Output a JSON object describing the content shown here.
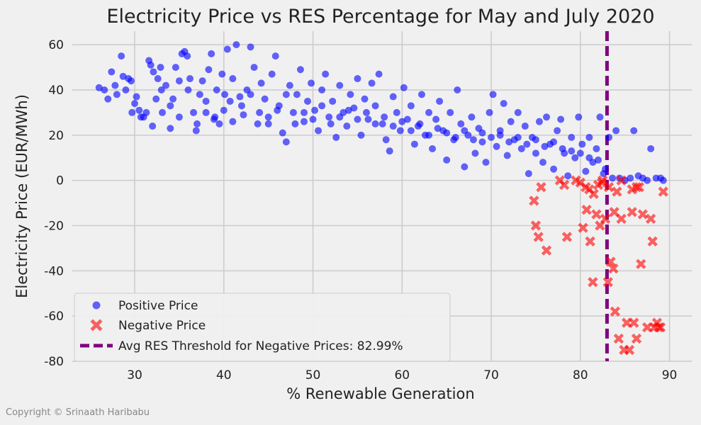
{
  "chart_data": {
    "type": "scatter",
    "title": "Electricity Price vs RES Percentage for May and July 2020",
    "xlabel": "% Renewable Generation",
    "ylabel": "Electricity Price (EUR/MWh)",
    "xlim": [
      23,
      92.5
    ],
    "ylim": [
      -80,
      66
    ],
    "xticks": [
      30,
      40,
      50,
      60,
      70,
      80,
      90
    ],
    "yticks": [
      -80,
      -60,
      -40,
      -20,
      0,
      20,
      40,
      60
    ],
    "grid": true,
    "legend_position": "bottom-left",
    "threshold": {
      "x": 82.99,
      "label": "Avg RES Threshold for Negative Prices: 82.99%",
      "color": "#800080"
    },
    "series": [
      {
        "name": "Positive Price",
        "marker": "circle",
        "color": "#0000ff",
        "points_note_ignored": "",
        "points": [
          [
            26,
            41
          ],
          [
            26.6,
            40
          ],
          [
            27,
            36
          ],
          [
            27.4,
            48
          ],
          [
            27.8,
            42
          ],
          [
            28,
            38
          ],
          [
            28.5,
            55
          ],
          [
            28.7,
            46
          ],
          [
            29,
            40
          ],
          [
            29.3,
            45
          ],
          [
            29.6,
            44
          ],
          [
            29.7,
            30
          ],
          [
            30.2,
            37
          ],
          [
            30.5,
            31
          ],
          [
            30.7,
            28
          ],
          [
            31.3,
            30
          ],
          [
            31.6,
            53
          ],
          [
            31.8,
            51
          ],
          [
            32.1,
            48
          ],
          [
            32.4,
            36
          ],
          [
            32.6,
            45
          ],
          [
            32.9,
            50
          ],
          [
            33.1,
            30
          ],
          [
            33.5,
            42
          ],
          [
            34,
            23
          ],
          [
            34.3,
            36
          ],
          [
            34.6,
            50
          ],
          [
            35,
            44
          ],
          [
            35.3,
            56
          ],
          [
            35.6,
            57
          ],
          [
            35.9,
            55
          ],
          [
            36.2,
            45
          ],
          [
            36.6,
            30
          ],
          [
            36.9,
            22
          ],
          [
            37.3,
            38
          ],
          [
            37.6,
            44
          ],
          [
            38,
            35
          ],
          [
            38.3,
            49
          ],
          [
            38.6,
            56
          ],
          [
            38.9,
            27
          ],
          [
            39.2,
            40
          ],
          [
            39.5,
            25
          ],
          [
            39.8,
            47
          ],
          [
            40.1,
            38
          ],
          [
            40.4,
            58
          ],
          [
            40.7,
            35
          ],
          [
            41,
            45
          ],
          [
            41.4,
            60
          ],
          [
            41.8,
            37
          ],
          [
            42.2,
            29
          ],
          [
            42.6,
            40
          ],
          [
            43,
            59
          ],
          [
            43.4,
            50
          ],
          [
            43.8,
            25
          ],
          [
            44.2,
            43
          ],
          [
            44.6,
            36
          ],
          [
            45,
            28
          ],
          [
            45.4,
            47
          ],
          [
            45.8,
            55
          ],
          [
            46.2,
            33
          ],
          [
            46.6,
            21
          ],
          [
            47,
            17
          ],
          [
            47.4,
            42
          ],
          [
            47.8,
            30
          ],
          [
            48.2,
            38
          ],
          [
            48.6,
            49
          ],
          [
            49,
            26
          ],
          [
            49.4,
            35
          ],
          [
            49.8,
            43
          ],
          [
            50.2,
            31
          ],
          [
            50.6,
            22
          ],
          [
            51,
            40
          ],
          [
            51.4,
            47
          ],
          [
            51.8,
            28
          ],
          [
            52.2,
            35
          ],
          [
            52.6,
            19
          ],
          [
            53,
            42
          ],
          [
            53.4,
            30
          ],
          [
            53.8,
            24
          ],
          [
            54.2,
            38
          ],
          [
            54.6,
            32
          ],
          [
            55,
            45
          ],
          [
            55.4,
            20
          ],
          [
            55.8,
            36
          ],
          [
            56.2,
            27
          ],
          [
            56.6,
            43
          ],
          [
            57,
            33
          ],
          [
            57.4,
            47
          ],
          [
            57.8,
            25
          ],
          [
            58.2,
            18
          ],
          [
            58.6,
            13
          ],
          [
            59,
            37
          ],
          [
            59.4,
            30
          ],
          [
            59.8,
            22
          ],
          [
            60.2,
            41
          ],
          [
            60.6,
            27
          ],
          [
            61,
            33
          ],
          [
            61.4,
            16
          ],
          [
            61.8,
            24
          ],
          [
            62.2,
            38
          ],
          [
            62.6,
            20
          ],
          [
            63,
            30
          ],
          [
            63.4,
            14
          ],
          [
            63.8,
            27
          ],
          [
            64.2,
            35
          ],
          [
            64.6,
            22
          ],
          [
            65,
            9
          ],
          [
            65.4,
            30
          ],
          [
            65.8,
            18
          ],
          [
            66.2,
            40
          ],
          [
            66.6,
            25
          ],
          [
            67,
            6
          ],
          [
            67.4,
            20
          ],
          [
            67.8,
            28
          ],
          [
            68.2,
            12
          ],
          [
            68.6,
            23
          ],
          [
            69,
            17
          ],
          [
            69.4,
            8
          ],
          [
            69.8,
            30
          ],
          [
            70.2,
            38
          ],
          [
            70.6,
            15
          ],
          [
            71,
            22
          ],
          [
            71.4,
            34
          ],
          [
            71.8,
            11
          ],
          [
            72.2,
            26
          ],
          [
            72.6,
            18
          ],
          [
            73,
            30
          ],
          [
            73.4,
            14
          ],
          [
            73.8,
            24
          ],
          [
            74.2,
            3
          ],
          [
            74.6,
            19
          ],
          [
            75,
            12
          ],
          [
            75.4,
            26
          ],
          [
            75.8,
            8
          ],
          [
            76.2,
            28
          ],
          [
            76.6,
            16
          ],
          [
            77,
            5
          ],
          [
            77.4,
            22
          ],
          [
            77.8,
            27
          ],
          [
            78.2,
            12
          ],
          [
            78.6,
            2
          ],
          [
            79,
            19
          ],
          [
            79.4,
            10
          ],
          [
            79.8,
            28
          ],
          [
            80.2,
            16
          ],
          [
            80.6,
            4
          ],
          [
            81,
            19
          ],
          [
            81.4,
            8
          ],
          [
            81.8,
            14
          ],
          [
            82.2,
            28
          ],
          [
            82.6,
            3
          ],
          [
            83.2,
            19
          ],
          [
            83.6,
            1
          ],
          [
            84,
            22
          ],
          [
            84.4,
            1
          ],
          [
            85,
            0
          ],
          [
            85.6,
            1
          ],
          [
            86,
            22
          ],
          [
            86.5,
            2
          ],
          [
            87,
            1
          ],
          [
            87.5,
            0
          ],
          [
            87.9,
            14
          ],
          [
            88.5,
            1
          ],
          [
            89,
            1
          ],
          [
            89.3,
            0
          ],
          [
            30,
            34
          ],
          [
            31,
            28
          ],
          [
            32,
            24
          ],
          [
            33,
            40
          ],
          [
            34,
            33
          ],
          [
            35,
            28
          ],
          [
            36,
            40
          ],
          [
            37,
            25
          ],
          [
            38,
            30
          ],
          [
            39,
            28
          ],
          [
            40,
            31
          ],
          [
            41,
            26
          ],
          [
            42,
            33
          ],
          [
            43,
            38
          ],
          [
            44,
            30
          ],
          [
            45,
            25
          ],
          [
            46,
            31
          ],
          [
            47,
            38
          ],
          [
            48,
            25
          ],
          [
            49,
            30
          ],
          [
            50,
            27
          ],
          [
            51,
            33
          ],
          [
            52,
            25
          ],
          [
            53,
            28
          ],
          [
            54,
            31
          ],
          [
            55,
            27
          ],
          [
            56,
            30
          ],
          [
            57,
            25
          ],
          [
            58,
            28
          ],
          [
            59,
            24
          ],
          [
            60,
            26
          ],
          [
            61,
            22
          ],
          [
            62,
            25
          ],
          [
            63,
            20
          ],
          [
            64,
            23
          ],
          [
            65,
            21
          ],
          [
            66,
            19
          ],
          [
            67,
            22
          ],
          [
            68,
            18
          ],
          [
            69,
            21
          ],
          [
            70,
            19
          ],
          [
            71,
            20
          ],
          [
            72,
            17
          ],
          [
            73,
            19
          ],
          [
            74,
            16
          ],
          [
            75,
            18
          ],
          [
            76,
            15
          ],
          [
            77,
            17
          ],
          [
            78,
            14
          ],
          [
            79,
            13
          ],
          [
            80,
            12
          ],
          [
            81,
            10
          ],
          [
            82,
            9
          ],
          [
            82.8,
            5
          ]
        ]
      },
      {
        "name": "Negative Price",
        "marker": "x",
        "color": "#ff0000",
        "points": [
          [
            74.8,
            -9
          ],
          [
            75,
            -20
          ],
          [
            75.3,
            -25
          ],
          [
            75.6,
            -3
          ],
          [
            76.2,
            -31
          ],
          [
            77.7,
            0
          ],
          [
            78.2,
            -2
          ],
          [
            78.5,
            -25
          ],
          [
            79.5,
            0
          ],
          [
            80,
            -1
          ],
          [
            80.3,
            -21
          ],
          [
            80.7,
            -13
          ],
          [
            81.1,
            -27
          ],
          [
            81.4,
            -45
          ],
          [
            81.8,
            -15
          ],
          [
            82.2,
            -20
          ],
          [
            82.5,
            0
          ],
          [
            82.8,
            -17
          ],
          [
            83.1,
            -45
          ],
          [
            83.4,
            -36
          ],
          [
            83.7,
            -39
          ],
          [
            83.9,
            -58
          ],
          [
            84.1,
            -5
          ],
          [
            84.3,
            -70
          ],
          [
            84.6,
            -17
          ],
          [
            84.9,
            -75
          ],
          [
            85.2,
            -63
          ],
          [
            85.5,
            -75
          ],
          [
            85.8,
            -14
          ],
          [
            86,
            -63
          ],
          [
            86.3,
            -70
          ],
          [
            86.6,
            -3
          ],
          [
            86.8,
            -37
          ],
          [
            87,
            -15
          ],
          [
            87.5,
            -65
          ],
          [
            87.9,
            -17
          ],
          [
            88.1,
            -27
          ],
          [
            88.3,
            -65
          ],
          [
            88.6,
            -63
          ],
          [
            88.8,
            -65
          ],
          [
            89,
            -65
          ],
          [
            89.3,
            -5
          ],
          [
            82,
            -2
          ],
          [
            82.4,
            -1
          ],
          [
            83.2,
            -3
          ],
          [
            83.8,
            -14
          ],
          [
            84.6,
            0
          ],
          [
            85.8,
            -4
          ],
          [
            86.3,
            -3
          ],
          [
            80.6,
            -3
          ],
          [
            81,
            -4
          ],
          [
            81.5,
            -6
          ]
        ]
      }
    ]
  },
  "footer": {
    "copyright": "Copyright © Srinaath Haribabu"
  }
}
